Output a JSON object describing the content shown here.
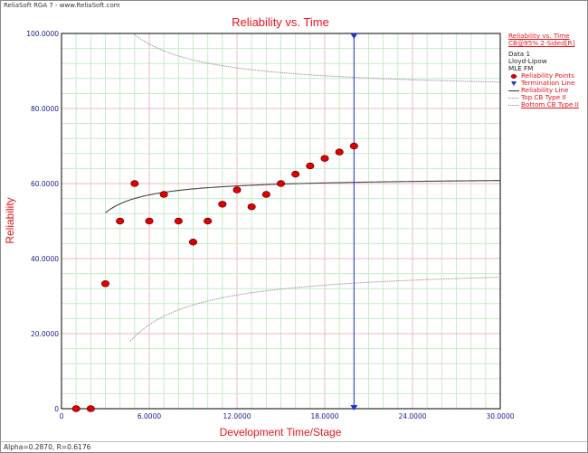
{
  "window": {
    "title": "ReliaSoft RGA 7 - www.ReliaSoft.com",
    "status": "Alpha=0.2870, R=0.6176"
  },
  "legend": {
    "title": "Reliability vs. Time",
    "subtitle": "CB@95% 2-Sided[R]",
    "dataset": "Data 1",
    "method": "Lloyd-Lipow",
    "estimator": "MLE FM",
    "items": [
      {
        "label": "Reliability Points",
        "icon": "red-dot-icon"
      },
      {
        "label": "Termination Line",
        "icon": "blue-triangle-icon"
      },
      {
        "label": "Reliability Line",
        "icon": "dark-line-icon"
      },
      {
        "label": "Top CB Type II",
        "icon": "dotted-line-icon"
      },
      {
        "label": "Bottom CB Type II",
        "icon": "dotted-line-icon"
      }
    ]
  },
  "colors": {
    "title": "#e8141e",
    "tick": "#1a1a8c",
    "grid_major": "#f0b8c0",
    "grid_minor": "#c7ecc7",
    "points": "#e00000",
    "termination": "#2233cc",
    "reliability_line": "#444444",
    "bounds": "#999999"
  },
  "chart_data": {
    "type": "scatter",
    "title": "Reliability vs. Time",
    "xlabel": "Development Time/Stage",
    "ylabel": "Reliability",
    "xlim": [
      0,
      30
    ],
    "ylim": [
      0,
      100
    ],
    "xticks": [
      "0",
      "6.0000",
      "12.0000",
      "18.0000",
      "24.0000",
      "30.0000"
    ],
    "yticks": [
      "0",
      "20.0000",
      "40.0000",
      "60.0000",
      "80.0000",
      "100.0000"
    ],
    "grid": true,
    "legend_position": "right",
    "reliability_points": {
      "x": [
        1,
        2,
        3,
        4,
        5,
        6,
        7,
        8,
        9,
        10,
        11,
        12,
        13,
        14,
        15,
        16,
        17,
        18,
        19,
        20
      ],
      "y": [
        0,
        0,
        33.3,
        50,
        60,
        50,
        57.1,
        50,
        44.4,
        50,
        54.5,
        58.3,
        53.8,
        57.1,
        60,
        62.5,
        64.7,
        66.7,
        68.4,
        70
      ]
    },
    "termination_line": {
      "x": 20
    },
    "reliability_line": {
      "model": "R(t) = Rinf - alpha/t",
      "Rinf": 61.76,
      "alpha": 28.7,
      "x_range": [
        3,
        30
      ]
    },
    "top_cb": {
      "x_range": [
        5,
        30
      ],
      "approx": "U(t) = 84.5 + 76/t"
    },
    "bottom_cb": {
      "x_range": [
        4.7,
        30
      ],
      "approx": "L(t) = 38.2 - 95/t"
    }
  }
}
